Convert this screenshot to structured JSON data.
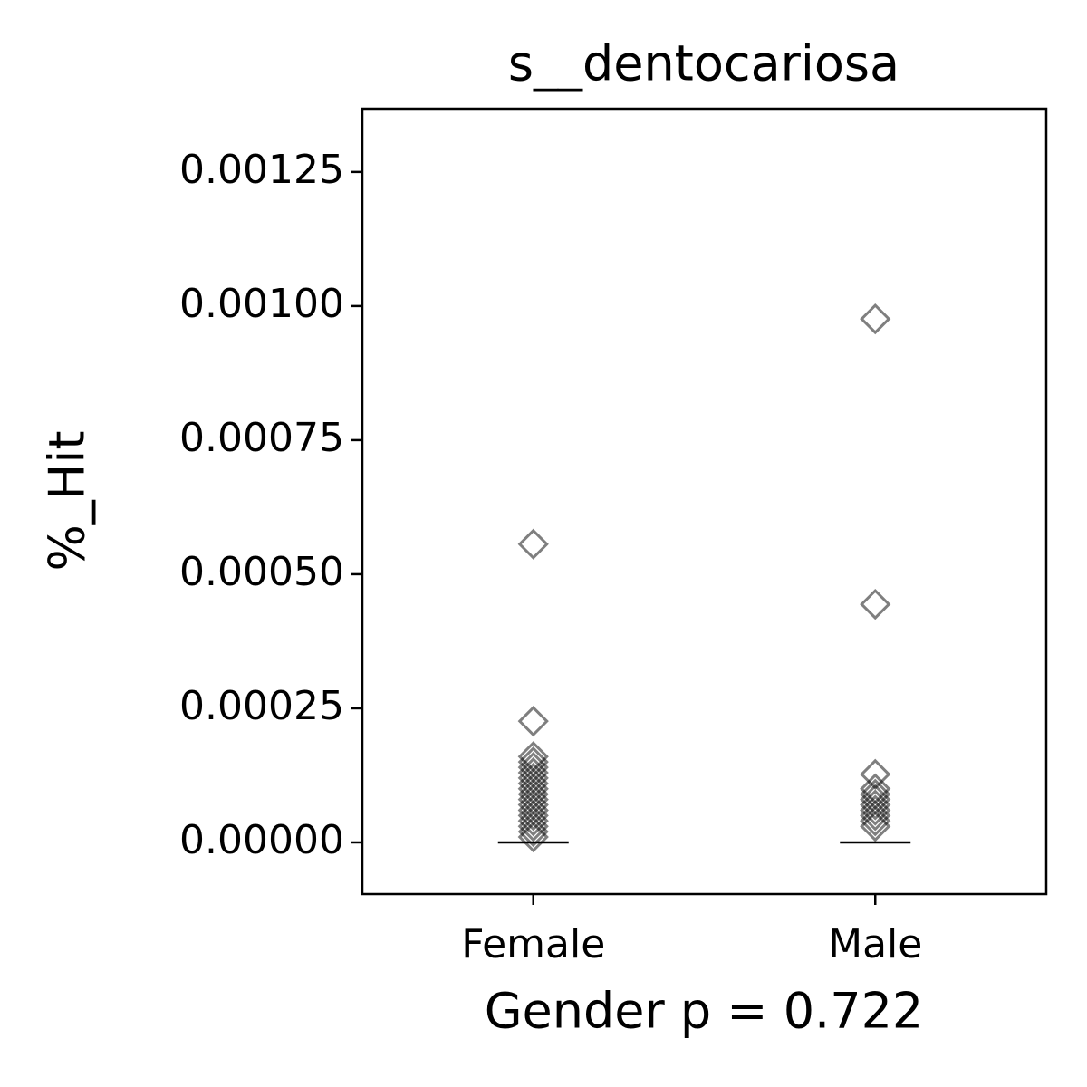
{
  "chart_data": {
    "type": "strip",
    "title": "s__dentocariosa",
    "xlabel": "Gender p = 0.722",
    "ylabel": "%_Hit",
    "categories": [
      "Female",
      "Male"
    ],
    "values": [
      [
        0.000556,
        0.000226,
        0.00016,
        0.00015,
        0.00014,
        0.00013,
        0.00012,
        0.00011,
        0.0001,
        9e-05,
        8e-05,
        7e-05,
        6e-05,
        5e-05,
        4e-05,
        3e-05,
        2e-05,
        1e-05
      ],
      [
        0.000976,
        0.000444,
        0.000127,
        0.0001,
        9e-05,
        8e-05,
        7e-05,
        6e-05,
        5e-05,
        4e-05,
        3e-05
      ]
    ],
    "medians": [
      0,
      0
    ],
    "marker_color": "#000000",
    "ylim": [
      -9.63e-05,
      0.001368
    ],
    "yticks": [
      {
        "value": 0,
        "label": "0.00000"
      },
      {
        "value": 0.00025,
        "label": "0.00025"
      },
      {
        "value": 0.0005,
        "label": "0.00050"
      },
      {
        "value": 0.00075,
        "label": "0.00075"
      },
      {
        "value": 0.001,
        "label": "0.00100"
      },
      {
        "value": 0.00125,
        "label": "0.00125"
      }
    ]
  }
}
